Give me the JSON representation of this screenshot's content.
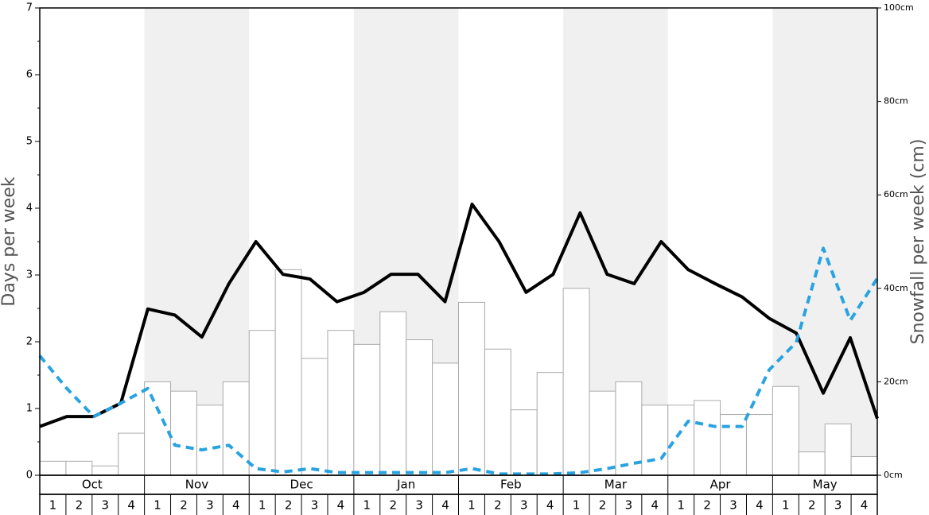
{
  "chart_data": {
    "type": "combo",
    "y_label": "Days per week",
    "y2_label": "Snowfall per week (cm)",
    "months": [
      "Oct",
      "Nov",
      "Dec",
      "Jan",
      "Feb",
      "Mar",
      "Apr",
      "May"
    ],
    "categories": [
      "1",
      "2",
      "3",
      "4",
      "1",
      "2",
      "3",
      "4",
      "1",
      "2",
      "3",
      "4",
      "1",
      "2",
      "3",
      "4",
      "1",
      "2",
      "3",
      "4",
      "1",
      "2",
      "3",
      "4",
      "1",
      "2",
      "3",
      "4",
      "1",
      "2",
      "3",
      "4"
    ],
    "ylim": [
      0,
      7
    ],
    "yticks": [
      0,
      1,
      2,
      3,
      4,
      5,
      6,
      7
    ],
    "yminorticks": [
      0.5,
      1.5,
      2.5,
      3.5,
      4.5,
      5.5,
      6.5
    ],
    "y2lim": [
      0,
      100
    ],
    "y2ticks": [
      {
        "value": 0,
        "label": "0cm"
      },
      {
        "value": 20,
        "label": "20cm"
      },
      {
        "value": 40,
        "label": "40cm"
      },
      {
        "value": 60,
        "label": "60cm"
      },
      {
        "value": 80,
        "label": "80cm"
      },
      {
        "value": 100,
        "label": "100cm"
      }
    ],
    "series": [
      {
        "type": "bar",
        "axis": "y2",
        "color": "#ffffff",
        "stroke": "#aaaaaa",
        "values": [
          3,
          3,
          2,
          9,
          20,
          18,
          15,
          20,
          31,
          44,
          25,
          31,
          28,
          35,
          29,
          24,
          37,
          27,
          14,
          22,
          40,
          18,
          20,
          15,
          15,
          16,
          13,
          13,
          19,
          5,
          11,
          4
        ]
      },
      {
        "type": "line",
        "color": "#000000",
        "dashed": false,
        "values": [
          0.73,
          0.88,
          0.88,
          1.08,
          2.49,
          2.4,
          2.07,
          2.87,
          3.5,
          3.01,
          2.94,
          2.6,
          2.74,
          3.01,
          3.01,
          2.6,
          4.06,
          3.5,
          2.74,
          3.01,
          3.93,
          3.01,
          2.87,
          3.5,
          3.08,
          2.87,
          2.67,
          2.35,
          2.13,
          1.23,
          2.06,
          0.85
        ]
      },
      {
        "type": "line",
        "color": "#29a3e0",
        "dashed": true,
        "values": [
          1.79,
          1.3,
          0.88,
          1.08,
          1.3,
          0.45,
          0.38,
          0.45,
          0.1,
          0.05,
          0.1,
          0.04,
          0.04,
          0.04,
          0.04,
          0.04,
          0.1,
          0.02,
          0.02,
          0.02,
          0.04,
          0.1,
          0.18,
          0.25,
          0.81,
          0.73,
          0.73,
          1.58,
          1.99,
          3.4,
          2.32,
          2.95
        ]
      }
    ]
  }
}
